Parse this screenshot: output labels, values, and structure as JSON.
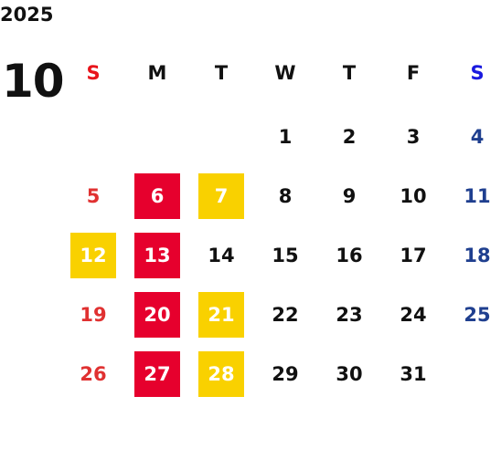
{
  "year": "2025",
  "month": "10",
  "weekdays": [
    {
      "label": "S",
      "color": "#e8141b",
      "day_color": "#e03131"
    },
    {
      "label": "M",
      "color": "#111111",
      "day_color": "#111111"
    },
    {
      "label": "T",
      "color": "#111111",
      "day_color": "#111111"
    },
    {
      "label": "W",
      "color": "#111111",
      "day_color": "#111111"
    },
    {
      "label": "T",
      "color": "#111111",
      "day_color": "#111111"
    },
    {
      "label": "F",
      "color": "#111111",
      "day_color": "#111111"
    },
    {
      "label": "S",
      "color": "#1a1adf",
      "day_color": "#1f3f8f"
    }
  ],
  "weeks": [
    [
      null,
      null,
      null,
      {
        "text": "1"
      },
      {
        "text": "2"
      },
      {
        "text": "3"
      },
      {
        "text": "4"
      }
    ],
    [
      {
        "text": "5"
      },
      {
        "text": "6",
        "bg": "#e6002d"
      },
      {
        "text": "7",
        "bg": "#f9d100"
      },
      {
        "text": "8"
      },
      {
        "text": "9"
      },
      {
        "text": "10"
      },
      {
        "text": "11"
      }
    ],
    [
      {
        "text": "12",
        "bg": "#f9d100"
      },
      {
        "text": "13",
        "bg": "#e6002d"
      },
      {
        "text": "14"
      },
      {
        "text": "15"
      },
      {
        "text": "16"
      },
      {
        "text": "17"
      },
      {
        "text": "18"
      }
    ],
    [
      {
        "text": "19"
      },
      {
        "text": "20",
        "bg": "#e6002d"
      },
      {
        "text": "21",
        "bg": "#f9d100"
      },
      {
        "text": "22"
      },
      {
        "text": "23"
      },
      {
        "text": "24"
      },
      {
        "text": "25"
      }
    ],
    [
      {
        "text": "26"
      },
      {
        "text": "27",
        "bg": "#e6002d"
      },
      {
        "text": "28",
        "bg": "#f9d100"
      },
      {
        "text": "29"
      },
      {
        "text": "30"
      },
      {
        "text": "31"
      },
      null
    ]
  ]
}
